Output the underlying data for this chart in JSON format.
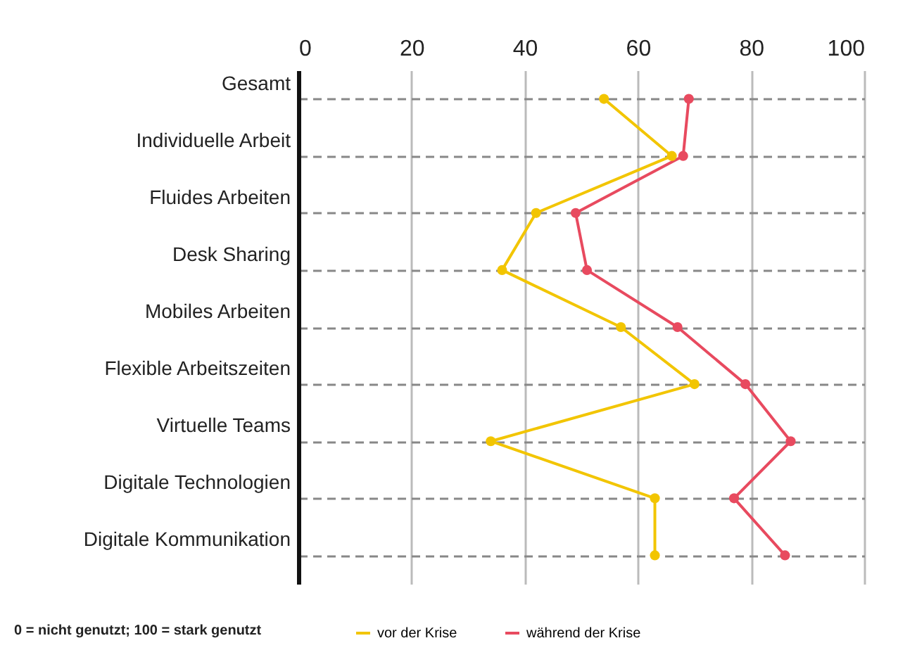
{
  "chart_data": {
    "type": "line",
    "categories": [
      "Gesamt",
      "Individuelle Arbeit",
      "Fluides Arbeiten",
      "Desk Sharing",
      "Mobiles Arbeiten",
      "Flexible Arbeitszeiten",
      "Virtuelle Teams",
      "Digitale Technologien",
      "Digitale Kommunikation"
    ],
    "orientation": "horizontal",
    "xlim": [
      0,
      100
    ],
    "xticks": [
      0,
      20,
      40,
      60,
      80,
      100
    ],
    "grid": true,
    "marker": "circle",
    "line_style": "solid",
    "legend": "bottom",
    "annotations": [
      "0 = nicht genutzt; 100 = stark genutzt"
    ],
    "series": [
      {
        "name": "vor der Krise",
        "color": "#f2c500",
        "values": [
          54,
          66,
          42,
          36,
          57,
          70,
          34,
          63,
          63
        ]
      },
      {
        "name": "während der Krise",
        "color": "#e84a5f",
        "values": [
          69,
          68,
          49,
          51,
          67,
          79,
          87,
          77,
          86
        ]
      }
    ]
  }
}
